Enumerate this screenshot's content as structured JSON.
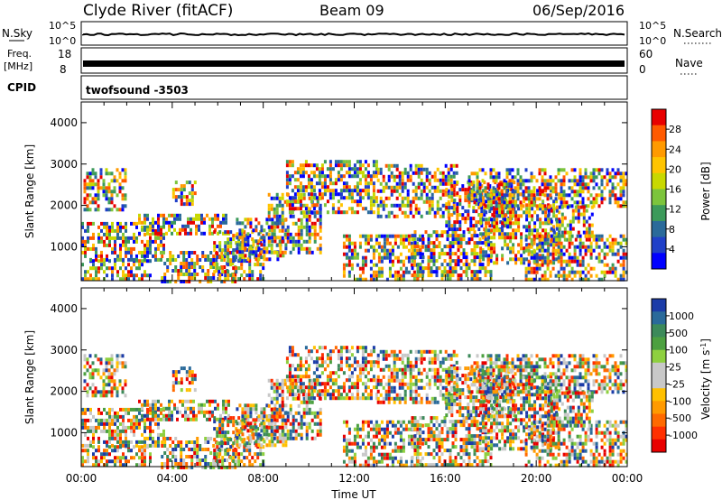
{
  "header": {
    "station": "Clyde River (fitACF)",
    "beam": "Beam 09",
    "date": "06/Sep/2016"
  },
  "panels": {
    "nsky": {
      "left_label": "N.Sky",
      "right_label": "N.Search",
      "left_ticks": [
        "10^5",
        "10^0"
      ],
      "right_ticks": [
        "10^5",
        "10^0"
      ]
    },
    "freq": {
      "left_label_1": "Freq.",
      "left_label_2": "[MHz]",
      "left_ticks": [
        "18",
        "8"
      ],
      "right_label": "Nave",
      "right_ticks": [
        "60",
        "0"
      ]
    },
    "cpid": {
      "label": "CPID",
      "value": "twofsound -3503"
    }
  },
  "chart_data": [
    {
      "type": "heatmap",
      "name": "power",
      "ylabel": "Slant Range [km]",
      "ylim": [
        180,
        4500
      ],
      "yticks": [
        "1000",
        "2000",
        "3000",
        "4000"
      ],
      "xlim": [
        0,
        24
      ],
      "colorbar": {
        "label": "Power [dB]",
        "ticks": [
          "28",
          "24",
          "20",
          "16",
          "12",
          "8",
          "4"
        ],
        "colors": [
          "#e80000",
          "#ff5a00",
          "#ff9a00",
          "#ffc400",
          "#c8d800",
          "#7cc43c",
          "#3c9a5a",
          "#2a6a9a",
          "#2040c8",
          "#0000ff"
        ]
      }
    },
    {
      "type": "heatmap",
      "name": "velocity",
      "ylabel": "Slant Range [km]",
      "ylim": [
        180,
        4500
      ],
      "yticks": [
        "1000",
        "2000",
        "3000",
        "4000"
      ],
      "xlim": [
        0,
        24
      ],
      "xlabel": "Time UT",
      "xticks": [
        "00:00",
        "04:00",
        "08:00",
        "12:00",
        "16:00",
        "20:00",
        "00:00"
      ],
      "colorbar": {
        "label": "Velocity [m s",
        "label_sup": "-1",
        "ticks": [
          "1000",
          "500",
          "100",
          "25",
          "-25",
          "-100",
          "-500",
          "-1000"
        ],
        "colors": [
          "#1c3ca8",
          "#2a6a9a",
          "#3c8a5a",
          "#4ca040",
          "#8ed040",
          "#c8c8c8",
          "#c8c8c8",
          "#ffc000",
          "#ff9a00",
          "#ff6a00",
          "#ff3000",
          "#e80000"
        ]
      }
    }
  ]
}
